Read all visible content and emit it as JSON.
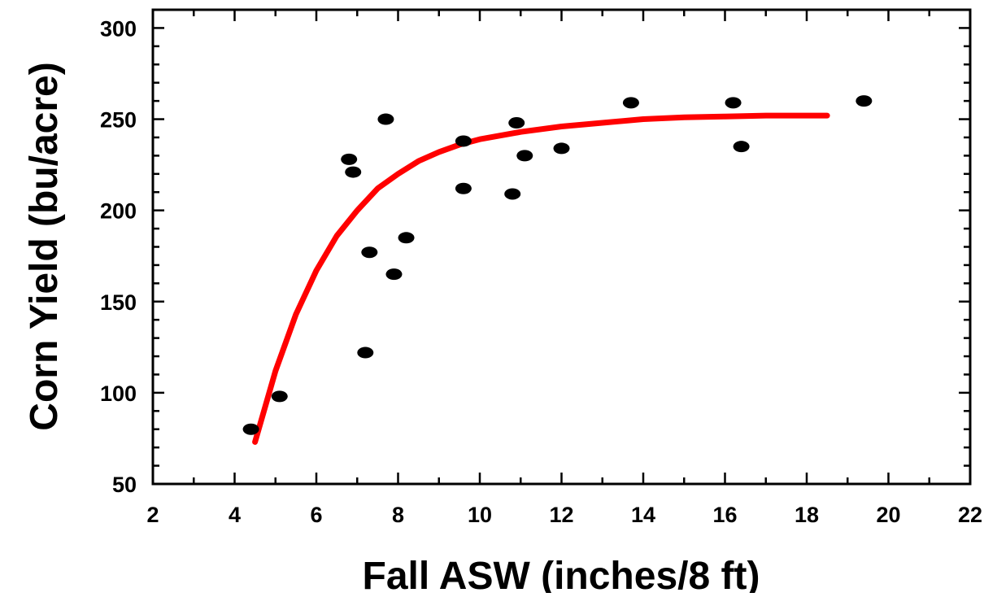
{
  "chart_data": {
    "type": "scatter",
    "title": "",
    "xlabel": "Fall ASW (inches/8 ft)",
    "ylabel": "Corn Yield (bu/acre)",
    "xlim": [
      2,
      22
    ],
    "ylim": [
      50,
      310
    ],
    "x_ticks": [
      2,
      4,
      6,
      8,
      10,
      12,
      14,
      16,
      18,
      20,
      22
    ],
    "y_ticks": [
      50,
      100,
      150,
      200,
      250,
      300
    ],
    "grid": false,
    "legend": "none",
    "point_color": "#000000",
    "curve_color": "#ff0000",
    "points": [
      {
        "x": 4.4,
        "y": 80
      },
      {
        "x": 5.1,
        "y": 98
      },
      {
        "x": 6.8,
        "y": 228
      },
      {
        "x": 6.9,
        "y": 221
      },
      {
        "x": 7.2,
        "y": 122
      },
      {
        "x": 7.3,
        "y": 177
      },
      {
        "x": 7.7,
        "y": 250
      },
      {
        "x": 7.9,
        "y": 165
      },
      {
        "x": 8.2,
        "y": 185
      },
      {
        "x": 9.6,
        "y": 238
      },
      {
        "x": 9.6,
        "y": 212
      },
      {
        "x": 10.8,
        "y": 209
      },
      {
        "x": 10.9,
        "y": 248
      },
      {
        "x": 11.1,
        "y": 230
      },
      {
        "x": 12.0,
        "y": 234
      },
      {
        "x": 13.7,
        "y": 259
      },
      {
        "x": 16.2,
        "y": 259
      },
      {
        "x": 16.4,
        "y": 235
      },
      {
        "x": 19.4,
        "y": 260
      }
    ],
    "fit_curve": [
      {
        "x": 4.5,
        "y": 73
      },
      {
        "x": 5.0,
        "y": 112
      },
      {
        "x": 5.5,
        "y": 143
      },
      {
        "x": 6.0,
        "y": 167
      },
      {
        "x": 6.5,
        "y": 186
      },
      {
        "x": 7.0,
        "y": 200
      },
      {
        "x": 7.5,
        "y": 212
      },
      {
        "x": 8.0,
        "y": 220
      },
      {
        "x": 8.5,
        "y": 227
      },
      {
        "x": 9.0,
        "y": 232
      },
      {
        "x": 9.5,
        "y": 236
      },
      {
        "x": 10.0,
        "y": 239
      },
      {
        "x": 11.0,
        "y": 243
      },
      {
        "x": 12.0,
        "y": 246
      },
      {
        "x": 13.0,
        "y": 248
      },
      {
        "x": 14.0,
        "y": 250
      },
      {
        "x": 15.0,
        "y": 251
      },
      {
        "x": 16.0,
        "y": 251.5
      },
      {
        "x": 17.0,
        "y": 252
      },
      {
        "x": 18.5,
        "y": 252
      }
    ]
  }
}
